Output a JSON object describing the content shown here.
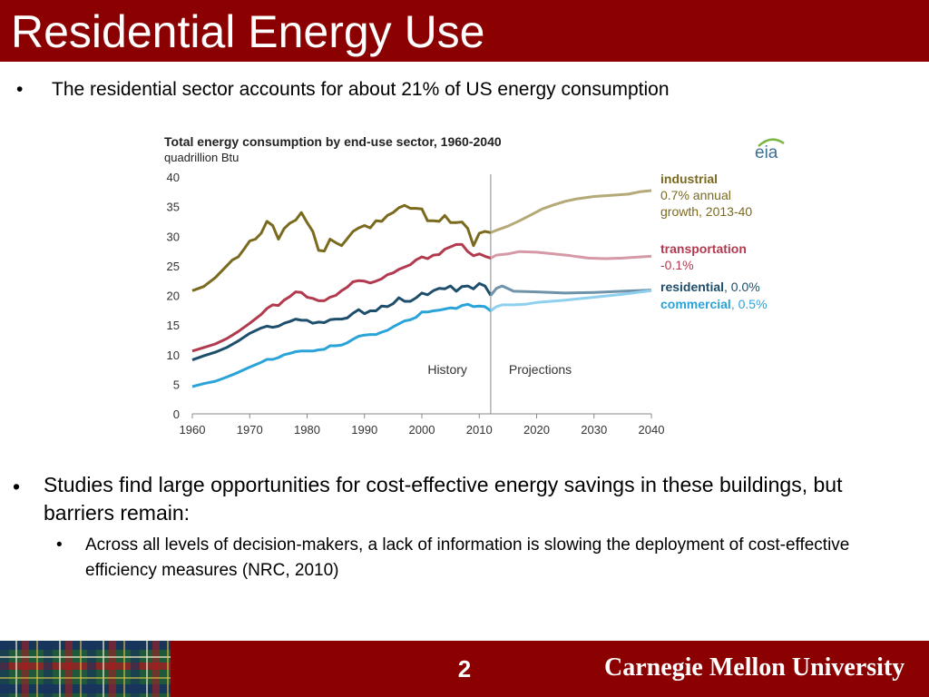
{
  "slide": {
    "title": "Residential Energy Use",
    "bullet1": "The residential sector accounts for about 21% of US energy consumption",
    "bullet2": "Studies find large opportunities for cost-effective energy savings in these buildings, but barriers remain:",
    "bullet3": "Across all levels of decision-makers, a lack of information is slowing the deployment of cost-effective efficiency  measures (NRC, 2010)",
    "bullet_glyph": "•",
    "page_number": "2",
    "footer_brand": "Carnegie Mellon University"
  },
  "colors": {
    "title_bar": "#8b0000",
    "industrial": "#7a6a1e",
    "industrial_proj": "#b5a978",
    "transportation": "#b23a4e",
    "transportation_proj": "#d59aa6",
    "residential": "#1d4e6b",
    "residential_proj": "#6f93a8",
    "commercial": "#29a3d8",
    "commercial_proj": "#8fd0ee"
  },
  "chart_data": {
    "type": "line",
    "title": "Total energy consumption  by end-use sector, 1960-2040",
    "subtitle": "quadrillion  Btu",
    "source_logo": "eia",
    "xlim": [
      1960,
      2040
    ],
    "ylim": [
      0,
      40
    ],
    "x_ticks": [
      1960,
      1970,
      1980,
      1990,
      2000,
      2010,
      2020,
      2030,
      2040
    ],
    "y_ticks": [
      0,
      5,
      10,
      15,
      20,
      25,
      30,
      35,
      40
    ],
    "history_end": 2012,
    "region_labels": [
      "History",
      "Projections"
    ],
    "legend_position": "right",
    "grid": false,
    "series": [
      {
        "name": "industrial",
        "growth": "0.7% annual growth, 2013-40",
        "history": [
          [
            1960,
            20.8
          ],
          [
            1962,
            21.5
          ],
          [
            1964,
            23
          ],
          [
            1965,
            24
          ],
          [
            1966,
            25
          ],
          [
            1967,
            26
          ],
          [
            1968,
            26.5
          ],
          [
            1969,
            27.8
          ],
          [
            1970,
            29.2
          ],
          [
            1971,
            29.5
          ],
          [
            1972,
            30.5
          ],
          [
            1973,
            32.5
          ],
          [
            1974,
            31.8
          ],
          [
            1975,
            29.5
          ],
          [
            1976,
            31.3
          ],
          [
            1977,
            32.2
          ],
          [
            1978,
            32.7
          ],
          [
            1979,
            34
          ],
          [
            1980,
            32.3
          ],
          [
            1981,
            30.8
          ],
          [
            1982,
            27.6
          ],
          [
            1983,
            27.5
          ],
          [
            1984,
            29.5
          ],
          [
            1985,
            28.9
          ],
          [
            1986,
            28.4
          ],
          [
            1987,
            29.6
          ],
          [
            1988,
            30.8
          ],
          [
            1989,
            31.4
          ],
          [
            1990,
            31.8
          ],
          [
            1991,
            31.4
          ],
          [
            1992,
            32.6
          ],
          [
            1993,
            32.5
          ],
          [
            1994,
            33.5
          ],
          [
            1995,
            34
          ],
          [
            1996,
            34.8
          ],
          [
            1997,
            35.2
          ],
          [
            1998,
            34.7
          ],
          [
            1999,
            34.7
          ],
          [
            2000,
            34.6
          ],
          [
            2001,
            32.6
          ],
          [
            2002,
            32.6
          ],
          [
            2003,
            32.5
          ],
          [
            2004,
            33.5
          ],
          [
            2005,
            32.3
          ],
          [
            2006,
            32.3
          ],
          [
            2007,
            32.4
          ],
          [
            2008,
            31.3
          ],
          [
            2009,
            28.4
          ],
          [
            2010,
            30.5
          ],
          [
            2011,
            30.8
          ],
          [
            2012,
            30.6
          ]
        ],
        "projection": [
          [
            2012,
            30.6
          ],
          [
            2013,
            31
          ],
          [
            2015,
            31.7
          ],
          [
            2017,
            32.6
          ],
          [
            2019,
            33.6
          ],
          [
            2021,
            34.6
          ],
          [
            2023,
            35.3
          ],
          [
            2025,
            35.9
          ],
          [
            2027,
            36.3
          ],
          [
            2030,
            36.7
          ],
          [
            2033,
            36.9
          ],
          [
            2036,
            37.1
          ],
          [
            2038,
            37.5
          ],
          [
            2040,
            37.7
          ]
        ]
      },
      {
        "name": "transportation",
        "growth": "-0.1%",
        "history": [
          [
            1960,
            10.6
          ],
          [
            1962,
            11.2
          ],
          [
            1964,
            11.8
          ],
          [
            1966,
            12.7
          ],
          [
            1968,
            13.9
          ],
          [
            1970,
            15.3
          ],
          [
            1972,
            16.8
          ],
          [
            1973,
            17.8
          ],
          [
            1974,
            18.4
          ],
          [
            1975,
            18.3
          ],
          [
            1976,
            19.2
          ],
          [
            1977,
            19.8
          ],
          [
            1978,
            20.6
          ],
          [
            1979,
            20.5
          ],
          [
            1980,
            19.7
          ],
          [
            1981,
            19.5
          ],
          [
            1982,
            19.1
          ],
          [
            1983,
            19.1
          ],
          [
            1984,
            19.7
          ],
          [
            1985,
            20
          ],
          [
            1986,
            20.8
          ],
          [
            1987,
            21.4
          ],
          [
            1988,
            22.3
          ],
          [
            1989,
            22.5
          ],
          [
            1990,
            22.4
          ],
          [
            1991,
            22.1
          ],
          [
            1992,
            22.4
          ],
          [
            1993,
            22.8
          ],
          [
            1994,
            23.5
          ],
          [
            1995,
            23.8
          ],
          [
            1996,
            24.4
          ],
          [
            1997,
            24.8
          ],
          [
            1998,
            25.2
          ],
          [
            1999,
            26
          ],
          [
            2000,
            26.5
          ],
          [
            2001,
            26.2
          ],
          [
            2002,
            26.8
          ],
          [
            2003,
            26.9
          ],
          [
            2004,
            27.8
          ],
          [
            2005,
            28.2
          ],
          [
            2006,
            28.6
          ],
          [
            2007,
            28.6
          ],
          [
            2008,
            27.4
          ],
          [
            2009,
            26.7
          ],
          [
            2010,
            27
          ],
          [
            2011,
            26.6
          ],
          [
            2012,
            26.3
          ]
        ],
        "projection": [
          [
            2012,
            26.3
          ],
          [
            2013,
            26.8
          ],
          [
            2015,
            27
          ],
          [
            2017,
            27.4
          ],
          [
            2020,
            27.3
          ],
          [
            2023,
            27
          ],
          [
            2026,
            26.7
          ],
          [
            2029,
            26.3
          ],
          [
            2032,
            26.2
          ],
          [
            2035,
            26.3
          ],
          [
            2038,
            26.5
          ],
          [
            2040,
            26.6
          ]
        ]
      },
      {
        "name": "residential",
        "growth": "0.0%",
        "history": [
          [
            1960,
            9.1
          ],
          [
            1962,
            9.8
          ],
          [
            1964,
            10.4
          ],
          [
            1966,
            11.2
          ],
          [
            1968,
            12.3
          ],
          [
            1970,
            13.6
          ],
          [
            1972,
            14.5
          ],
          [
            1973,
            14.8
          ],
          [
            1974,
            14.6
          ],
          [
            1975,
            14.8
          ],
          [
            1976,
            15.3
          ],
          [
            1977,
            15.6
          ],
          [
            1978,
            16
          ],
          [
            1979,
            15.8
          ],
          [
            1980,
            15.8
          ],
          [
            1981,
            15.3
          ],
          [
            1982,
            15.5
          ],
          [
            1983,
            15.4
          ],
          [
            1984,
            15.9
          ],
          [
            1985,
            16
          ],
          [
            1986,
            16
          ],
          [
            1987,
            16.2
          ],
          [
            1988,
            17
          ],
          [
            1989,
            17.6
          ],
          [
            1990,
            16.9
          ],
          [
            1991,
            17.4
          ],
          [
            1992,
            17.4
          ],
          [
            1993,
            18.2
          ],
          [
            1994,
            18.1
          ],
          [
            1995,
            18.6
          ],
          [
            1996,
            19.6
          ],
          [
            1997,
            19
          ],
          [
            1998,
            19
          ],
          [
            1999,
            19.6
          ],
          [
            2000,
            20.4
          ],
          [
            2001,
            20.1
          ],
          [
            2002,
            20.8
          ],
          [
            2003,
            21.2
          ],
          [
            2004,
            21.1
          ],
          [
            2005,
            21.6
          ],
          [
            2006,
            20.7
          ],
          [
            2007,
            21.5
          ],
          [
            2008,
            21.6
          ],
          [
            2009,
            21.1
          ],
          [
            2010,
            22
          ],
          [
            2011,
            21.6
          ],
          [
            2012,
            20
          ]
        ],
        "projection": [
          [
            2012,
            20
          ],
          [
            2013,
            21.2
          ],
          [
            2014,
            21.6
          ],
          [
            2016,
            20.7
          ],
          [
            2020,
            20.6
          ],
          [
            2025,
            20.4
          ],
          [
            2030,
            20.5
          ],
          [
            2035,
            20.7
          ],
          [
            2040,
            20.9
          ]
        ]
      },
      {
        "name": "commercial",
        "growth": "0.5%",
        "history": [
          [
            1960,
            4.6
          ],
          [
            1962,
            5.1
          ],
          [
            1964,
            5.5
          ],
          [
            1966,
            6.2
          ],
          [
            1968,
            7
          ],
          [
            1970,
            7.9
          ],
          [
            1972,
            8.7
          ],
          [
            1973,
            9.2
          ],
          [
            1974,
            9.2
          ],
          [
            1975,
            9.5
          ],
          [
            1976,
            10
          ],
          [
            1977,
            10.2
          ],
          [
            1978,
            10.5
          ],
          [
            1979,
            10.6
          ],
          [
            1980,
            10.6
          ],
          [
            1981,
            10.6
          ],
          [
            1982,
            10.8
          ],
          [
            1983,
            10.9
          ],
          [
            1984,
            11.5
          ],
          [
            1985,
            11.5
          ],
          [
            1986,
            11.6
          ],
          [
            1987,
            12
          ],
          [
            1988,
            12.6
          ],
          [
            1989,
            13.1
          ],
          [
            1990,
            13.3
          ],
          [
            1991,
            13.4
          ],
          [
            1992,
            13.4
          ],
          [
            1993,
            13.8
          ],
          [
            1994,
            14.1
          ],
          [
            1995,
            14.7
          ],
          [
            1996,
            15.2
          ],
          [
            1997,
            15.7
          ],
          [
            1998,
            15.9
          ],
          [
            1999,
            16.3
          ],
          [
            2000,
            17.2
          ],
          [
            2001,
            17.2
          ],
          [
            2002,
            17.4
          ],
          [
            2003,
            17.5
          ],
          [
            2004,
            17.7
          ],
          [
            2005,
            17.9
          ],
          [
            2006,
            17.8
          ],
          [
            2007,
            18.3
          ],
          [
            2008,
            18.5
          ],
          [
            2009,
            18.1
          ],
          [
            2010,
            18.2
          ],
          [
            2011,
            18.1
          ],
          [
            2012,
            17.4
          ]
        ],
        "projection": [
          [
            2012,
            17.4
          ],
          [
            2013,
            18.1
          ],
          [
            2014,
            18.4
          ],
          [
            2016,
            18.4
          ],
          [
            2018,
            18.5
          ],
          [
            2020,
            18.8
          ],
          [
            2025,
            19.2
          ],
          [
            2030,
            19.7
          ],
          [
            2035,
            20.2
          ],
          [
            2040,
            20.8
          ]
        ]
      }
    ],
    "legend": {
      "industrial": {
        "name": "industrial",
        "lines": [
          "0.7% annual",
          "growth, 2013-40"
        ]
      },
      "transportation": {
        "name": "transportation",
        "lines": [
          "-0.1%"
        ]
      },
      "residential": {
        "name": "residential",
        "suffix": ", 0.0%"
      },
      "commercial": {
        "name": "commercial",
        "suffix": ", 0.5%"
      }
    }
  }
}
